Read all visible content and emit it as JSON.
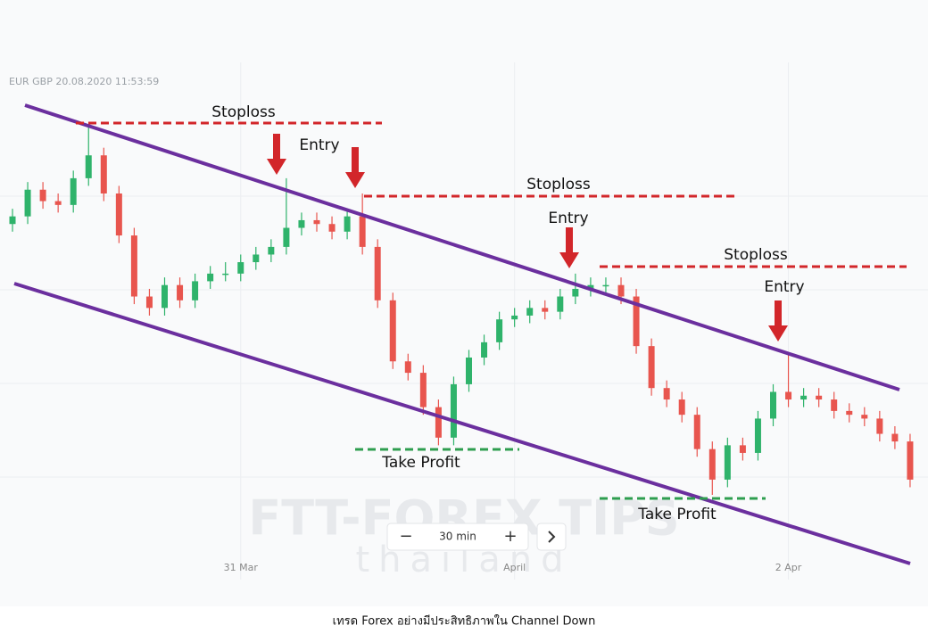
{
  "header": "EUR GBP  20.08.2020 11:53:59",
  "watermark": {
    "title": "FTT-FOREX TIPS",
    "subtitle": "thailand"
  },
  "controls": {
    "interval": "30 min"
  },
  "caption": "เทรด Forex อย่างมีประสิทธิภาพใน Channel Down",
  "annotations": {
    "stoploss": [
      "Stoploss",
      "Stoploss",
      "Stoploss"
    ],
    "entry": [
      "Entry",
      "Entry",
      "Entry"
    ],
    "take_profit": [
      "Take Profit",
      "Take Profit"
    ]
  },
  "chart_data": {
    "type": "candlestick",
    "up_color": "#2fb36b",
    "down_color": "#e8554e",
    "categories": [
      null,
      null,
      null,
      null,
      null,
      null,
      null,
      null,
      null,
      null,
      null,
      null,
      null,
      null,
      null,
      "31 Mar",
      null,
      null,
      null,
      null,
      null,
      null,
      null,
      null,
      null,
      null,
      null,
      null,
      null,
      null,
      null,
      null,
      null,
      "April",
      null,
      null,
      null,
      null,
      null,
      null,
      null,
      null,
      null,
      null,
      null,
      null,
      null,
      null,
      null,
      null,
      null,
      "2 Apr",
      null,
      null,
      null,
      null,
      null,
      null,
      null,
      null
    ],
    "values": [
      [
        72,
        76,
        70,
        74
      ],
      [
        74,
        83,
        72,
        81
      ],
      [
        81,
        83,
        76,
        78
      ],
      [
        78,
        80,
        75,
        77
      ],
      [
        77,
        86,
        75,
        84
      ],
      [
        84,
        98,
        82,
        90
      ],
      [
        90,
        92,
        78,
        80
      ],
      [
        80,
        82,
        67,
        69
      ],
      [
        69,
        71,
        51,
        53
      ],
      [
        53,
        55,
        48,
        50
      ],
      [
        50,
        58,
        48,
        56
      ],
      [
        56,
        58,
        50,
        52
      ],
      [
        52,
        59,
        50,
        57
      ],
      [
        57,
        61,
        55,
        59
      ],
      [
        59,
        62,
        57,
        59
      ],
      [
        59,
        64,
        57,
        62
      ],
      [
        62,
        66,
        60,
        64
      ],
      [
        64,
        68,
        62,
        66
      ],
      [
        66,
        84,
        64,
        71
      ],
      [
        71,
        75,
        69,
        73
      ],
      [
        73,
        75,
        70,
        72
      ],
      [
        72,
        74,
        68,
        70
      ],
      [
        70,
        76,
        68,
        74
      ],
      [
        74,
        80,
        64,
        66
      ],
      [
        66,
        68,
        50,
        52
      ],
      [
        52,
        54,
        34,
        36
      ],
      [
        36,
        38,
        31,
        33
      ],
      [
        33,
        35,
        22,
        24
      ],
      [
        24,
        26,
        14,
        16
      ],
      [
        16,
        32,
        14,
        30
      ],
      [
        30,
        39,
        28,
        37
      ],
      [
        37,
        43,
        35,
        41
      ],
      [
        41,
        49,
        39,
        47
      ],
      [
        47,
        50,
        45,
        48
      ],
      [
        48,
        52,
        46,
        50
      ],
      [
        50,
        52,
        47,
        49
      ],
      [
        49,
        55,
        47,
        53
      ],
      [
        53,
        59,
        51,
        55
      ],
      [
        55,
        58,
        53,
        56
      ],
      [
        56,
        58,
        54,
        56
      ],
      [
        56,
        58,
        51,
        53
      ],
      [
        53,
        55,
        38,
        40
      ],
      [
        40,
        42,
        27,
        29
      ],
      [
        29,
        31,
        24,
        26
      ],
      [
        26,
        28,
        20,
        22
      ],
      [
        22,
        24,
        11,
        13
      ],
      [
        13,
        15,
        1,
        5
      ],
      [
        5,
        16,
        3,
        14
      ],
      [
        14,
        16,
        10,
        12
      ],
      [
        12,
        23,
        10,
        21
      ],
      [
        21,
        30,
        19,
        28
      ],
      [
        28,
        38,
        24,
        26
      ],
      [
        26,
        29,
        24,
        27
      ],
      [
        27,
        29,
        24,
        26
      ],
      [
        26,
        28,
        21,
        23
      ],
      [
        23,
        25,
        20,
        22
      ],
      [
        22,
        24,
        19,
        21
      ],
      [
        21,
        23,
        15,
        17
      ],
      [
        17,
        19,
        13,
        15
      ],
      [
        15,
        17,
        3,
        5
      ]
    ]
  }
}
